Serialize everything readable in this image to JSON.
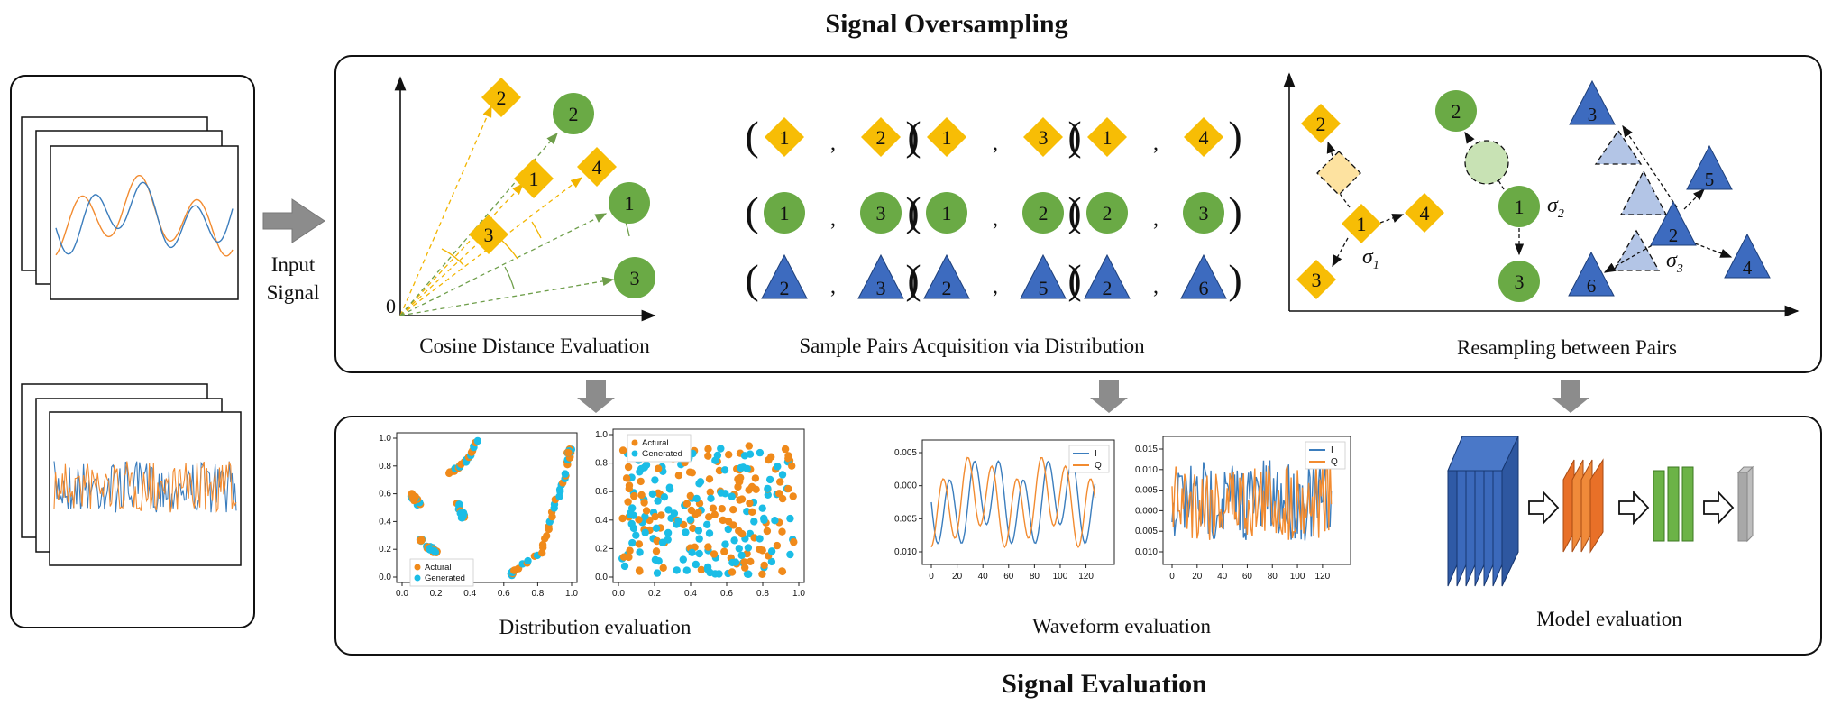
{
  "titles": {
    "top": "Signal Oversampling",
    "bottom": "Signal Evaluation"
  },
  "input": {
    "label_line1": "Input",
    "label_line2": "Signal"
  },
  "oversampling": {
    "cosine_caption": "Cosine Distance Evaluation",
    "origin_label": "0",
    "pairs_caption": "Sample Pairs Acquisition via Distribution",
    "resampling_caption": "Resampling between Pairs",
    "diamond_nodes": [
      "2",
      "1",
      "4",
      "3"
    ],
    "circle_nodes": [
      "2",
      "1",
      "3"
    ],
    "pair_rows": [
      {
        "shape": "diamond",
        "pairs": [
          [
            "1",
            "2"
          ],
          [
            "1",
            "3"
          ],
          [
            "1",
            "4"
          ]
        ]
      },
      {
        "shape": "circle",
        "pairs": [
          [
            "1",
            "3"
          ],
          [
            "1",
            "2"
          ],
          [
            "2",
            "3"
          ]
        ]
      },
      {
        "shape": "triangle",
        "pairs": [
          [
            "2",
            "3"
          ],
          [
            "2",
            "5"
          ],
          [
            "2",
            "6"
          ]
        ]
      }
    ],
    "resample": {
      "diamonds": [
        "2",
        "1",
        "4",
        "3"
      ],
      "circles": [
        "2",
        "1",
        "3"
      ],
      "triangles": [
        "3",
        "5",
        "2",
        "6",
        "4"
      ],
      "sigma": [
        "σ",
        "1",
        "σ",
        "2",
        "σ",
        "3"
      ]
    }
  },
  "evaluation": {
    "distribution_caption": "Distribution evaluation",
    "waveform_caption": "Waveform evaluation",
    "model_caption": "Model evaluation",
    "legend_actual": "Actural",
    "legend_generated": "Generated",
    "legend_i": "I",
    "legend_q": "Q",
    "scatter_y_ticks": [
      "0.0",
      "0.2",
      "0.4",
      "0.6",
      "0.8",
      "1.0"
    ],
    "scatter_x_ticks": [
      "0.0",
      "0.2",
      "0.4",
      "0.6",
      "0.8",
      "1.0"
    ],
    "wave1_y_ticks": [
      "0.005",
      "0.000",
      "0.005",
      "0.010"
    ],
    "wave2_y_ticks": [
      "0.015",
      "0.010",
      "0.005",
      "0.000",
      "0.005",
      "0.010"
    ],
    "wave_x_ticks": [
      "0",
      "20",
      "40",
      "60",
      "80",
      "100",
      "120"
    ]
  },
  "colors": {
    "signal_i": "#3b7dbd",
    "signal_q": "#f28b30",
    "diamond": "#f7bd05",
    "circle": "#6aaa45",
    "triangle": "#3d6bbf",
    "actual": "#f08a1a",
    "generated": "#1bbde6"
  }
}
